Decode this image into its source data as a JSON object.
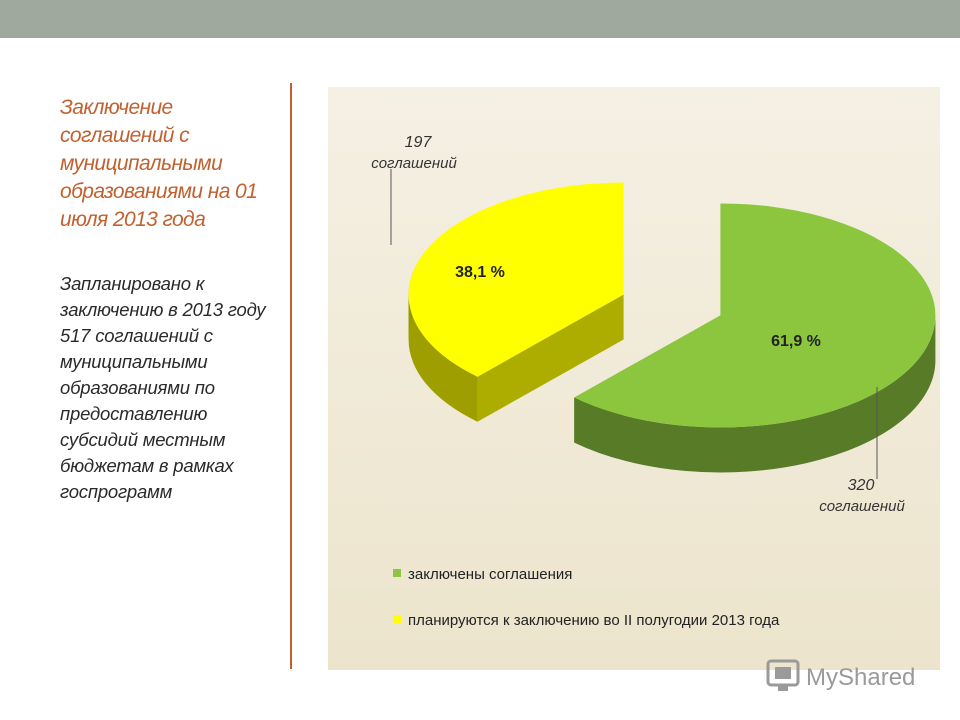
{
  "slide": {
    "title": "Заключение соглашений с муниципальными образованиями на 01 июля 2013 года",
    "description": "Запланировано к заключению в 2013 году 517 соглашений с муниципальными образованиями по предоставлению субсидий местным бюджетам в рамках госпрограмм",
    "watermark": "MyShared"
  },
  "colors": {
    "accent": "#c0612f",
    "concluded": "#8cc63f",
    "planned": "#ffff00"
  },
  "chart_data": {
    "type": "pie",
    "style": "3d-exploded",
    "slices": [
      {
        "name": "заключены соглашения",
        "value": 320,
        "percent": 61.9,
        "percent_label": "61,9 %",
        "count_label": "320",
        "count_unit": "соглашений",
        "color": "#8cc63f"
      },
      {
        "name": "планируются к заключению во II полугодии 2013 года",
        "value": 197,
        "percent": 38.1,
        "percent_label": "38,1 %",
        "count_label": "197",
        "count_unit": "соглашений",
        "color": "#ffff00"
      }
    ],
    "legend": {
      "position": "bottom",
      "entries": [
        "заключены соглашения",
        "планируются к заключению во II полугодии 2013 года"
      ]
    }
  }
}
